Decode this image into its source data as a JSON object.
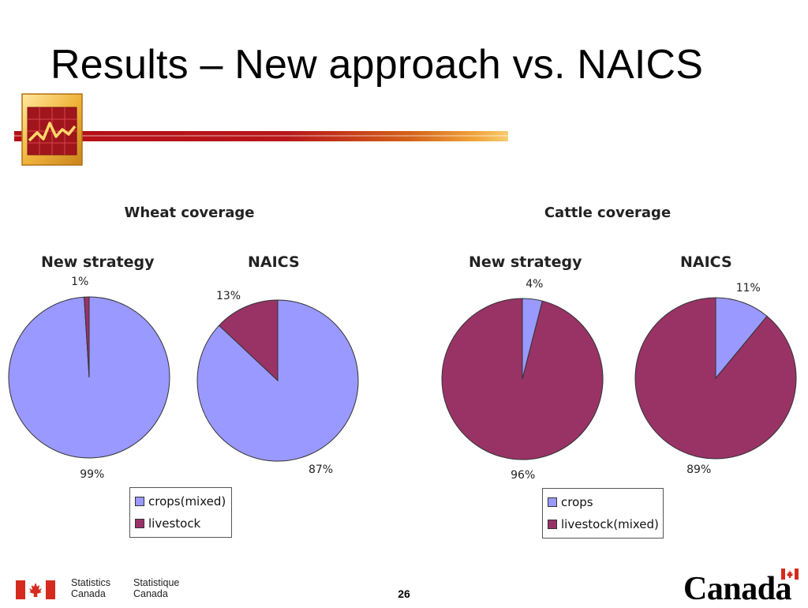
{
  "slide": {
    "title": "Results – New approach vs. NAICS",
    "page_number": "26",
    "footer": {
      "statistics_canada_en_1": "Statistics",
      "statistics_canada_en_2": "Canada",
      "statistics_canada_fr_1": "Statistique",
      "statistics_canada_fr_2": "Canada",
      "wordmark": "Canada"
    }
  },
  "colors": {
    "crops": "#9999ff",
    "livestock": "#993366",
    "title_bar": "#b8161a"
  },
  "chart_data": [
    {
      "type": "pie",
      "title": "Wheat coverage",
      "subtitle": "New strategy",
      "slices": [
        {
          "name": "crops(mixed)",
          "value": 99,
          "label": "99%"
        },
        {
          "name": "livestock",
          "value": 1,
          "label": "1%"
        }
      ]
    },
    {
      "type": "pie",
      "title": "Wheat coverage",
      "subtitle": "NAICS",
      "slices": [
        {
          "name": "crops(mixed)",
          "value": 87,
          "label": "87%"
        },
        {
          "name": "livestock",
          "value": 13,
          "label": "13%"
        }
      ]
    },
    {
      "type": "pie",
      "title": "Cattle coverage",
      "subtitle": "New strategy",
      "slices": [
        {
          "name": "crops",
          "value": 4,
          "label": "4%"
        },
        {
          "name": "livestock(mixed)",
          "value": 96,
          "label": "96%"
        }
      ]
    },
    {
      "type": "pie",
      "title": "Cattle coverage",
      "subtitle": "NAICS",
      "slices": [
        {
          "name": "crops",
          "value": 11,
          "label": "11%"
        },
        {
          "name": "livestock(mixed)",
          "value": 89,
          "label": "89%"
        }
      ]
    }
  ],
  "legends": {
    "wheat": [
      "crops(mixed)",
      "livestock"
    ],
    "cattle": [
      "crops",
      "livestock(mixed)"
    ]
  }
}
